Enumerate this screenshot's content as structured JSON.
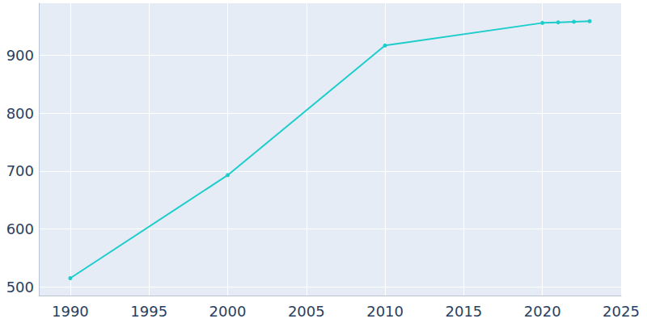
{
  "chart_data": {
    "type": "line",
    "x": [
      1990,
      2000,
      2010,
      2020,
      2021,
      2022,
      2023
    ],
    "values": [
      515,
      693,
      917,
      956,
      957,
      958,
      959
    ],
    "color": "#1ccdcb",
    "marker": "circle",
    "xlim": [
      1988,
      2025
    ],
    "xticks": [
      1990,
      1995,
      2000,
      2005,
      2010,
      2015,
      2020,
      2025
    ],
    "ylim": [
      485,
      990
    ],
    "yticks": [
      500,
      600,
      700,
      800,
      900
    ],
    "grid": true
  }
}
